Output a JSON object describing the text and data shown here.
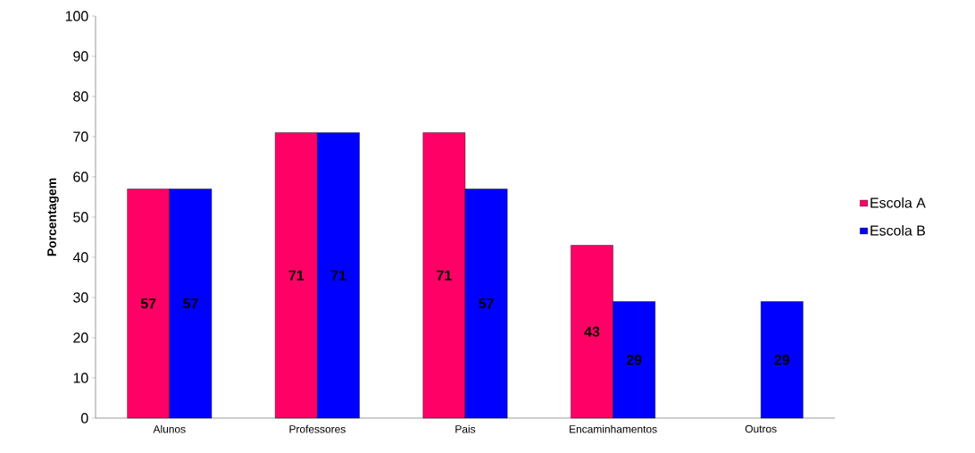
{
  "chart_data": {
    "type": "bar",
    "ylabel": "Porcentagem",
    "categories": [
      "Alunos",
      "Professores",
      "Pais",
      "Encaminhamentos",
      "Outros"
    ],
    "series": [
      {
        "name": "Escola A",
        "color": "#ff0066",
        "values": [
          57,
          71,
          71,
          43,
          null
        ]
      },
      {
        "name": "Escola B",
        "color": "#0000ff",
        "values": [
          57,
          71,
          57,
          29,
          29
        ]
      }
    ],
    "ylim": [
      0,
      100
    ],
    "yticks": [
      0,
      10,
      20,
      30,
      40,
      50,
      60,
      70,
      80,
      90,
      100
    ],
    "grid": false,
    "legend": "right",
    "data_labels": true
  }
}
